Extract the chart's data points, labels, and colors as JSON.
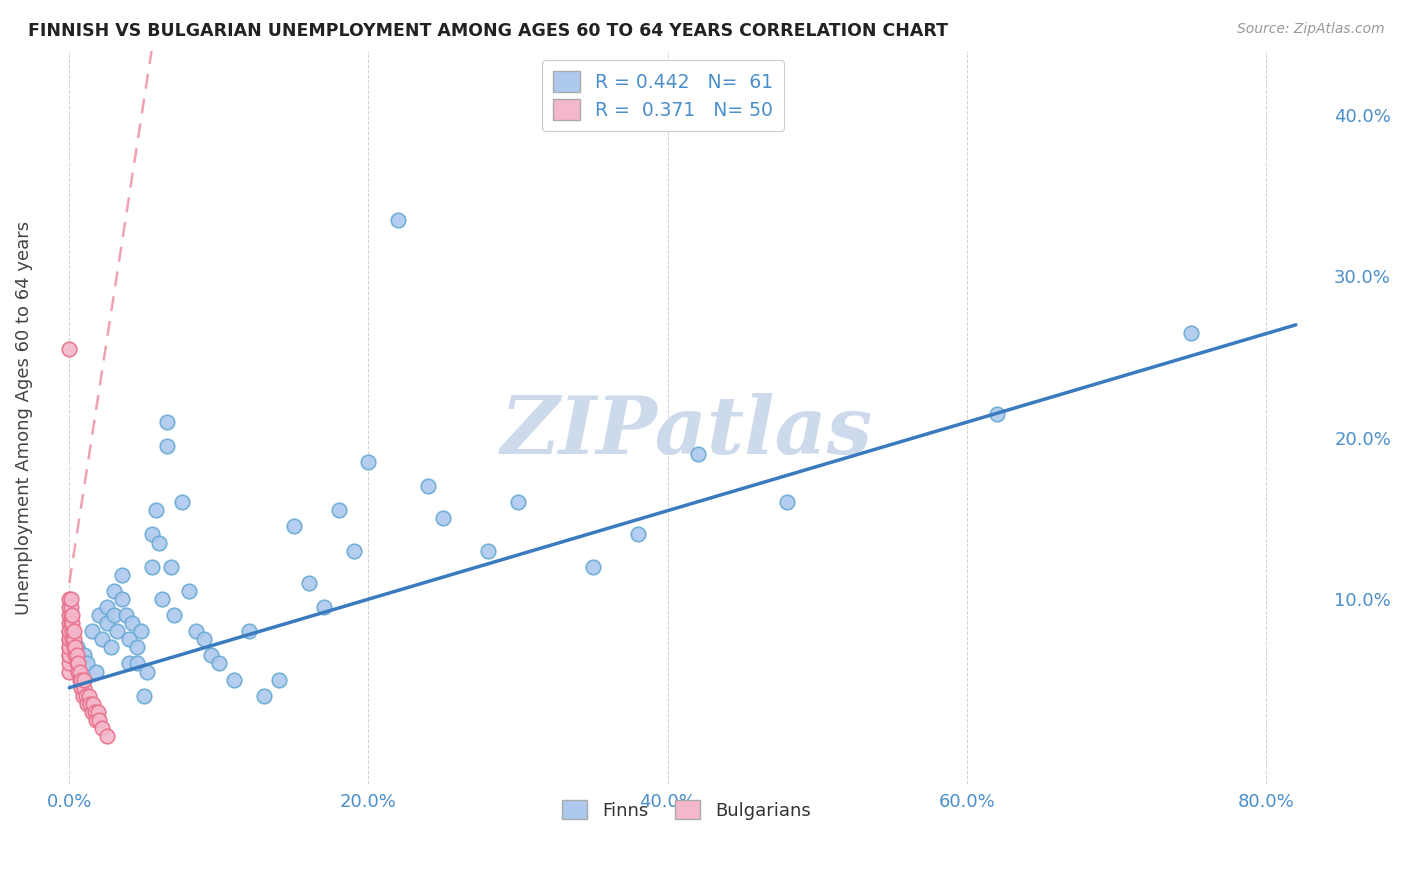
{
  "title": "FINNISH VS BULGARIAN UNEMPLOYMENT AMONG AGES 60 TO 64 YEARS CORRELATION CHART",
  "source": "Source: ZipAtlas.com",
  "ylabel": "Unemployment Among Ages 60 to 64 years",
  "xlabel_ticks": [
    "0.0%",
    "20.0%",
    "40.0%",
    "60.0%",
    "80.0%"
  ],
  "xlabel_vals": [
    0.0,
    0.2,
    0.4,
    0.6,
    0.8
  ],
  "ylabel_ticks": [
    "10.0%",
    "20.0%",
    "30.0%",
    "40.0%"
  ],
  "ylabel_vals": [
    0.1,
    0.2,
    0.3,
    0.4
  ],
  "xlim": [
    -0.015,
    0.84
  ],
  "ylim": [
    -0.015,
    0.44
  ],
  "finn_R": 0.442,
  "finn_N": 61,
  "bulg_R": 0.371,
  "bulg_N": 50,
  "finn_color": "#adc9ee",
  "finn_edge_color": "#6aaad4",
  "bulg_color": "#f5b8cb",
  "bulg_edge_color": "#e8708a",
  "trend_finn_color": "#3a7abf",
  "trend_bulg_color": "#e8708a",
  "watermark_color": "#ccdaeb",
  "legend_finn_label": "Finns",
  "legend_bulg_label": "Bulgarians",
  "background_color": "#ffffff",
  "finn_x": [
    0.005,
    0.008,
    0.01,
    0.012,
    0.015,
    0.018,
    0.02,
    0.022,
    0.025,
    0.025,
    0.028,
    0.03,
    0.03,
    0.032,
    0.035,
    0.035,
    0.038,
    0.04,
    0.04,
    0.042,
    0.045,
    0.045,
    0.048,
    0.05,
    0.052,
    0.055,
    0.055,
    0.058,
    0.06,
    0.062,
    0.065,
    0.065,
    0.068,
    0.07,
    0.075,
    0.08,
    0.085,
    0.09,
    0.095,
    0.1,
    0.11,
    0.12,
    0.13,
    0.14,
    0.15,
    0.16,
    0.17,
    0.18,
    0.19,
    0.2,
    0.22,
    0.24,
    0.25,
    0.28,
    0.3,
    0.35,
    0.38,
    0.42,
    0.48,
    0.62,
    0.75
  ],
  "finn_y": [
    0.07,
    0.05,
    0.065,
    0.06,
    0.08,
    0.055,
    0.09,
    0.075,
    0.095,
    0.085,
    0.07,
    0.09,
    0.105,
    0.08,
    0.1,
    0.115,
    0.09,
    0.06,
    0.075,
    0.085,
    0.06,
    0.07,
    0.08,
    0.04,
    0.055,
    0.12,
    0.14,
    0.155,
    0.135,
    0.1,
    0.195,
    0.21,
    0.12,
    0.09,
    0.16,
    0.105,
    0.08,
    0.075,
    0.065,
    0.06,
    0.05,
    0.08,
    0.04,
    0.05,
    0.145,
    0.11,
    0.095,
    0.155,
    0.13,
    0.185,
    0.335,
    0.17,
    0.15,
    0.13,
    0.16,
    0.12,
    0.14,
    0.19,
    0.16,
    0.215,
    0.265
  ],
  "bulg_x": [
    0.0,
    0.0,
    0.0,
    0.0,
    0.0,
    0.0,
    0.0,
    0.0,
    0.0,
    0.0,
    0.0,
    0.0,
    0.0,
    0.0,
    0.001,
    0.001,
    0.001,
    0.001,
    0.002,
    0.002,
    0.002,
    0.002,
    0.003,
    0.003,
    0.003,
    0.004,
    0.004,
    0.005,
    0.005,
    0.006,
    0.006,
    0.007,
    0.007,
    0.008,
    0.008,
    0.009,
    0.01,
    0.01,
    0.011,
    0.012,
    0.013,
    0.014,
    0.015,
    0.016,
    0.017,
    0.018,
    0.019,
    0.02,
    0.022,
    0.025
  ],
  "bulg_y": [
    0.055,
    0.06,
    0.065,
    0.07,
    0.075,
    0.08,
    0.085,
    0.09,
    0.095,
    0.1,
    0.065,
    0.07,
    0.075,
    0.08,
    0.085,
    0.09,
    0.095,
    0.1,
    0.075,
    0.08,
    0.085,
    0.09,
    0.07,
    0.075,
    0.08,
    0.065,
    0.07,
    0.06,
    0.065,
    0.055,
    0.06,
    0.05,
    0.055,
    0.045,
    0.05,
    0.04,
    0.045,
    0.05,
    0.04,
    0.035,
    0.04,
    0.035,
    0.03,
    0.035,
    0.03,
    0.025,
    0.03,
    0.025,
    0.02,
    0.015
  ],
  "bulg_outlier_x": [
    0.0
  ],
  "bulg_outlier_y": [
    0.255
  ],
  "finn_trend_x0": 0.0,
  "finn_trend_y0": 0.045,
  "finn_trend_x1": 0.82,
  "finn_trend_y1": 0.27,
  "bulg_trend_x0": 0.0,
  "bulg_trend_y0": 0.11,
  "bulg_trend_x1": 0.055,
  "bulg_trend_y1": 0.44
}
